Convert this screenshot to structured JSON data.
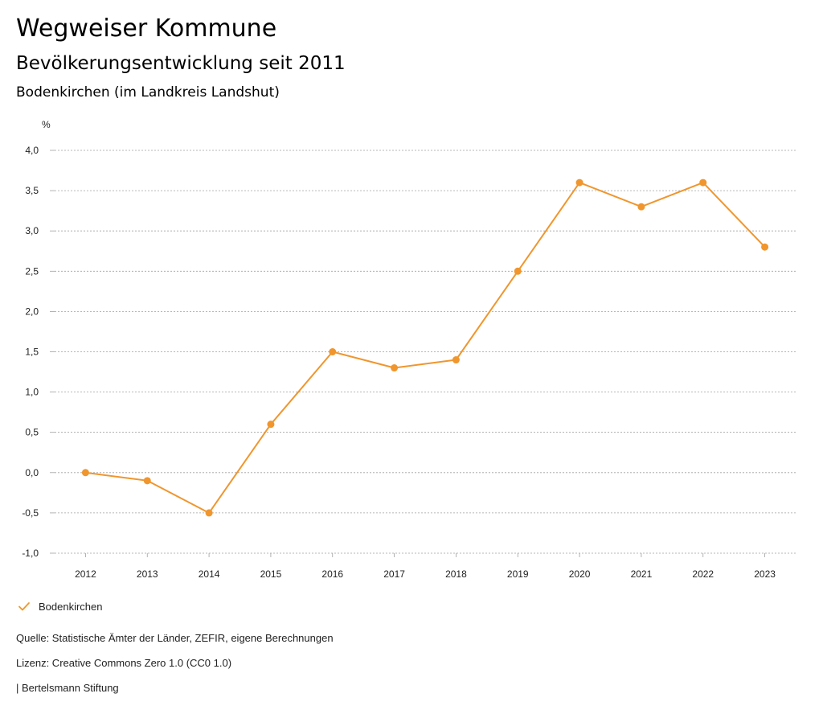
{
  "header": {
    "title": "Wegweiser Kommune",
    "subtitle": "Bevölkerungsentwicklung seit 2011",
    "region": "Bodenkirchen (im Landkreis Landshut)"
  },
  "colors": {
    "series": "#F0962D",
    "grid": "#A0A0A0",
    "text": "#222222"
  },
  "chart_data": {
    "type": "line",
    "title": "Bevölkerungsentwicklung seit 2011",
    "ylabel": "%",
    "xlabel": "",
    "ylim": [
      -1.0,
      4.0
    ],
    "yticks": [
      4.0,
      3.5,
      3.0,
      2.5,
      2.0,
      1.5,
      1.0,
      0.5,
      0.0,
      -0.5,
      -1.0
    ],
    "ytick_labels": [
      "4,0",
      "3,5",
      "3,0",
      "2,5",
      "2,0",
      "1,5",
      "1,0",
      "0,5",
      "0,0",
      "-0,5",
      "-1,0"
    ],
    "categories": [
      "2012",
      "2013",
      "2014",
      "2015",
      "2016",
      "2017",
      "2018",
      "2019",
      "2020",
      "2021",
      "2022",
      "2023"
    ],
    "grid": true,
    "legend_position": "bottom-left",
    "series": [
      {
        "name": "Bodenkirchen",
        "values": [
          0.0,
          -0.1,
          -0.5,
          0.6,
          1.5,
          1.3,
          1.4,
          2.5,
          3.6,
          3.3,
          3.6,
          2.8
        ]
      }
    ]
  },
  "legend": {
    "label": "Bodenkirchen",
    "icon": "check-icon"
  },
  "footer": {
    "source": "Quelle: Statistische Ämter der Länder, ZEFIR, eigene Berechnungen",
    "license": "Lizenz: Creative Commons Zero 1.0 (CC0 1.0)",
    "brand": "| Bertelsmann Stiftung"
  }
}
